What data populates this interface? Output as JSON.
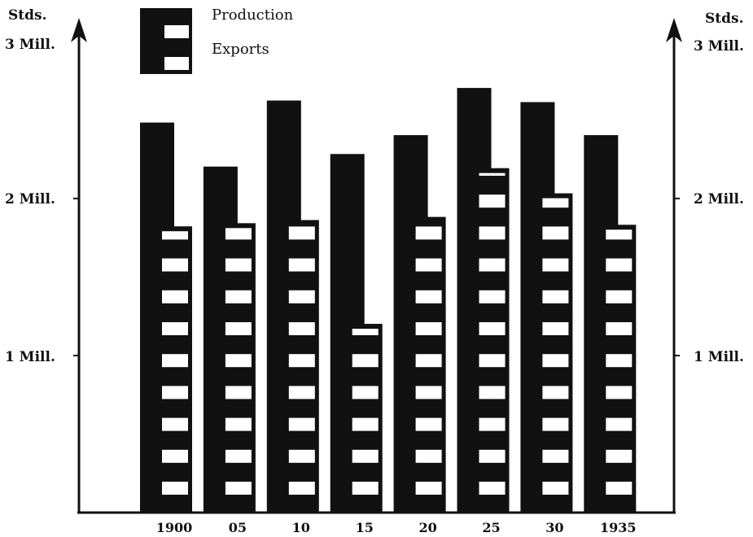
{
  "chart_data": {
    "type": "bar",
    "categories": [
      "1900",
      "05",
      "10",
      "15",
      "20",
      "25",
      "30",
      "1935"
    ],
    "series": [
      {
        "name": "Production",
        "values": [
          2.48,
          2.2,
          2.62,
          2.28,
          2.4,
          2.7,
          2.61,
          2.4
        ],
        "color": "#111111",
        "pattern": "solid"
      },
      {
        "name": "Exports",
        "values": [
          1.82,
          1.84,
          1.86,
          1.2,
          1.88,
          2.19,
          2.03,
          1.83
        ],
        "color": "#111111",
        "pattern": "horizontal-stripes"
      }
    ],
    "y_unit_label": "Stds.",
    "y_ticks": [
      {
        "value": 1,
        "label": "1 Mill."
      },
      {
        "value": 2,
        "label": "2 Mill."
      },
      {
        "value": 3,
        "label": "3 Mill."
      }
    ],
    "ylim": [
      0,
      3
    ],
    "legend_position": "top-left",
    "grid": false
  }
}
